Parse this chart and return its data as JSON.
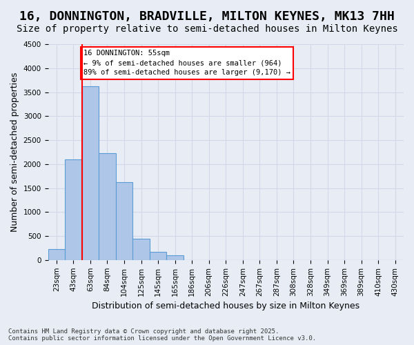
{
  "title": "16, DONNINGTON, BRADVILLE, MILTON KEYNES, MK13 7HH",
  "subtitle": "Size of property relative to semi-detached houses in Milton Keynes",
  "xlabel": "Distribution of semi-detached houses by size in Milton Keynes",
  "ylabel": "Number of semi-detached properties",
  "footnote": "Contains HM Land Registry data © Crown copyright and database right 2025.\nContains public sector information licensed under the Open Government Licence v3.0.",
  "bin_labels": [
    "23sqm",
    "43sqm",
    "63sqm",
    "84sqm",
    "104sqm",
    "125sqm",
    "145sqm",
    "165sqm",
    "186sqm",
    "206sqm",
    "226sqm",
    "247sqm",
    "267sqm",
    "287sqm",
    "308sqm",
    "328sqm",
    "349sqm",
    "369sqm",
    "389sqm",
    "410sqm",
    "430sqm"
  ],
  "bar_values": [
    230,
    2100,
    3620,
    2230,
    1620,
    450,
    170,
    100,
    0,
    0,
    0,
    0,
    0,
    0,
    0,
    0,
    0,
    0,
    0,
    0,
    0
  ],
  "bar_color": "#aec6e8",
  "bar_edge_color": "#5b9bd5",
  "property_line_x": 1.5,
  "annotation_title": "16 DONNINGTON: 55sqm",
  "annotation_line1": "← 9% of semi-detached houses are smaller (964)",
  "annotation_line2": "89% of semi-detached houses are larger (9,170) →",
  "annotation_box_color": "white",
  "annotation_box_edge": "red",
  "red_line_color": "red",
  "ylim": [
    0,
    4500
  ],
  "yticks": [
    0,
    500,
    1000,
    1500,
    2000,
    2500,
    3000,
    3500,
    4000,
    4500
  ],
  "grid_color": "#d0d8e8",
  "bg_color": "#e8edf5",
  "title_fontsize": 13,
  "subtitle_fontsize": 10,
  "axis_label_fontsize": 9,
  "tick_fontsize": 7.5,
  "footnote_fontsize": 6.5
}
